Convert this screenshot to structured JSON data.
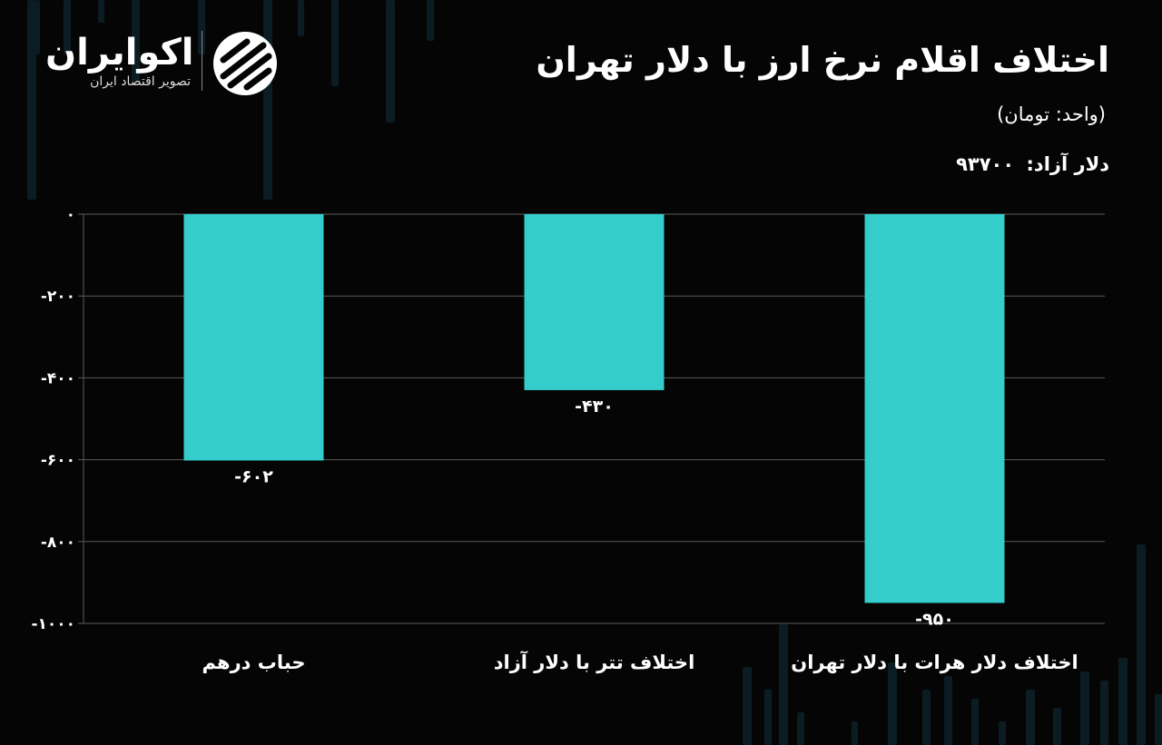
{
  "brand": {
    "name": "اکوایران",
    "tagline": "تصویر اقتصاد ایران"
  },
  "header": {
    "title": "اختلاف اقلام نرخ ارز با دلار تهران",
    "unit": "(واحد: تومان)",
    "free_dollar_label": "دلار آزاد:",
    "free_dollar_value": "۹۳۷۰۰"
  },
  "colors": {
    "background": "#050505",
    "bar": "#35cccc",
    "grid": "#5a5a5a",
    "text": "#ffffff"
  },
  "chart_data": {
    "type": "bar",
    "categories": [
      "حباب درهم",
      "اختلاف تتر با دلار آزاد",
      "اختلاف دلار هرات با دلار تهران"
    ],
    "values": [
      -602,
      -430,
      -950
    ],
    "data_labels": [
      "-۶۰۲",
      "-۴۳۰",
      "-۹۵۰"
    ],
    "ylim": [
      -1000,
      0
    ],
    "yticks": [
      0,
      -200,
      -400,
      -600,
      -800,
      -1000
    ],
    "ytick_labels": [
      "۰",
      "-۲۰۰",
      "-۴۰۰",
      "-۶۰۰",
      "-۸۰۰",
      "-۱۰۰۰"
    ],
    "grid": true
  }
}
